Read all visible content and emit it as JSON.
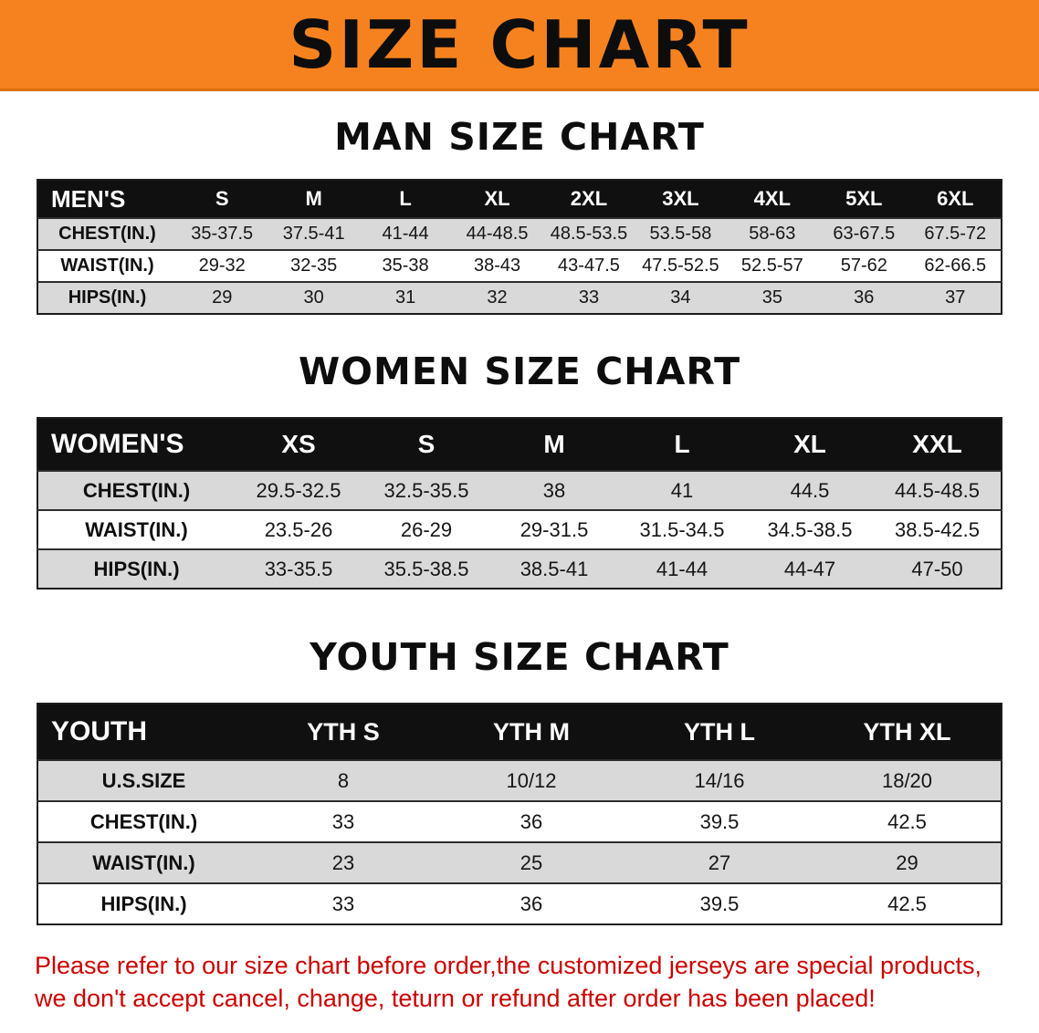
{
  "banner": {
    "title": "SIZE CHART"
  },
  "sections": [
    {
      "heading": "MAN SIZE CHART",
      "table": {
        "label": "MEN'S",
        "columns": [
          "S",
          "M",
          "L",
          "XL",
          "2XL",
          "3XL",
          "4XL",
          "5XL",
          "6XL"
        ],
        "rows": [
          {
            "label": "CHEST(IN.)",
            "values": [
              "35-37.5",
              "37.5-41",
              "41-44",
              "44-48.5",
              "48.5-53.5",
              "53.5-58",
              "58-63",
              "63-67.5",
              "67.5-72"
            ]
          },
          {
            "label": "WAIST(IN.)",
            "values": [
              "29-32",
              "32-35",
              "35-38",
              "38-43",
              "43-47.5",
              "47.5-52.5",
              "52.5-57",
              "57-62",
              "62-66.5"
            ]
          },
          {
            "label": "HIPS(IN.)",
            "values": [
              "29",
              "30",
              "31",
              "32",
              "33",
              "34",
              "35",
              "36",
              "37"
            ]
          }
        ]
      }
    },
    {
      "heading": "WOMEN SIZE CHART",
      "table": {
        "label": "WOMEN'S",
        "columns": [
          "XS",
          "S",
          "M",
          "L",
          "XL",
          "XXL"
        ],
        "rows": [
          {
            "label": "CHEST(IN.)",
            "values": [
              "29.5-32.5",
              "32.5-35.5",
              "38",
              "41",
              "44.5",
              "44.5-48.5"
            ]
          },
          {
            "label": "WAIST(IN.)",
            "values": [
              "23.5-26",
              "26-29",
              "29-31.5",
              "31.5-34.5",
              "34.5-38.5",
              "38.5-42.5"
            ]
          },
          {
            "label": "HIPS(IN.)",
            "values": [
              "33-35.5",
              "35.5-38.5",
              "38.5-41",
              "41-44",
              "44-47",
              "47-50"
            ]
          }
        ]
      }
    },
    {
      "heading": "YOUTH SIZE CHART",
      "table": {
        "label": "YOUTH",
        "columns": [
          "YTH S",
          "YTH M",
          "YTH L",
          "YTH XL"
        ],
        "rows": [
          {
            "label": "U.S.SIZE",
            "values": [
              "8",
              "10/12",
              "14/16",
              "18/20"
            ]
          },
          {
            "label": "CHEST(IN.)",
            "values": [
              "33",
              "36",
              "39.5",
              "42.5"
            ]
          },
          {
            "label": "WAIST(IN.)",
            "values": [
              "23",
              "25",
              "27",
              "29"
            ]
          },
          {
            "label": "HIPS(IN.)",
            "values": [
              "33",
              "36",
              "39.5",
              "42.5"
            ]
          }
        ]
      }
    }
  ],
  "footer": {
    "line1": "Please refer to our size chart before order,the customized jerseys are special products,",
    "line2": "we don't accept cancel, change, teturn or refund after order has been placed!"
  },
  "colors": {
    "banner_bg": "#f6821f",
    "table_header_bg": "#101010",
    "row_alt_bg": "#d9d9d9",
    "disclaimer_text": "#cc0000"
  }
}
